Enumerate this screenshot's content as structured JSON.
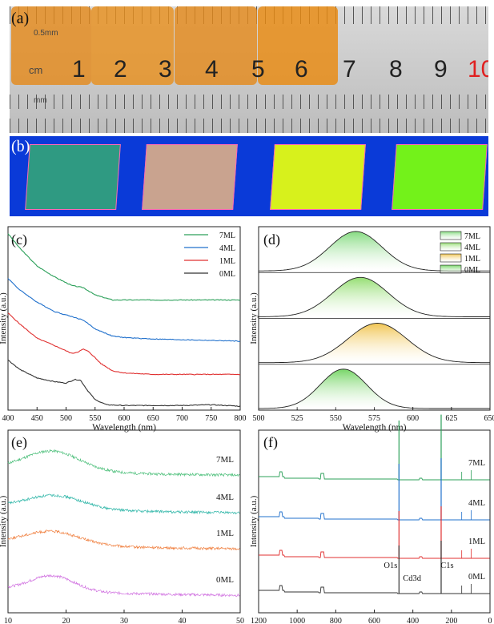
{
  "panel_labels": [
    "(a)",
    "(b)",
    "(c)",
    "(d)",
    "(e)",
    "(f)"
  ],
  "ruler": {
    "unit_label": "cm",
    "sub_unit_label": "0.5mm",
    "mm_label": "mm",
    "numbers": [
      "1",
      "2",
      "3",
      "4",
      "5",
      "6",
      "7",
      "8",
      "9",
      "10"
    ],
    "colors": {
      "film": "#e48a1c",
      "ruler": "#cccccc",
      "red_mark": "#e02020"
    }
  },
  "photo_b": {
    "background": "#0a3ad8",
    "tiles": [
      {
        "color": "#2f9a82"
      },
      {
        "color": "#c9a38f"
      },
      {
        "color": "#d7f11c"
      },
      {
        "color": "#73f21a"
      }
    ]
  },
  "chart_data": [
    {
      "panel": "(c)",
      "type": "line",
      "xlabel": "Wavelength (nm)",
      "ylabel": "Intensity (a.u.)",
      "xlim": [
        400,
        800
      ],
      "xticks": [
        "400",
        "450",
        "500",
        "550",
        "600",
        "650",
        "700",
        "750",
        "800"
      ],
      "yticks_visible": false,
      "legend": "top-right",
      "series": [
        {
          "name": "7ML",
          "color": "#2ca05a",
          "x": [
            400,
            420,
            450,
            480,
            510,
            530,
            550,
            580,
            600,
            650,
            700,
            750,
            800
          ],
          "y": [
            2.4,
            2.2,
            1.95,
            1.8,
            1.68,
            1.65,
            1.55,
            1.48,
            1.48,
            1.48,
            1.48,
            1.48,
            1.48
          ]
        },
        {
          "name": "4ML",
          "color": "#2070cc",
          "x": [
            400,
            420,
            450,
            480,
            510,
            530,
            550,
            580,
            600,
            650,
            700,
            750,
            800
          ],
          "y": [
            1.78,
            1.62,
            1.45,
            1.32,
            1.25,
            1.2,
            1.08,
            0.98,
            0.96,
            0.94,
            0.93,
            0.92,
            0.91
          ]
        },
        {
          "name": "1ML",
          "color": "#e03030",
          "x": [
            400,
            420,
            450,
            480,
            510,
            520,
            530,
            540,
            560,
            580,
            600,
            650,
            700,
            750,
            800
          ],
          "y": [
            1.3,
            1.15,
            0.95,
            0.85,
            0.74,
            0.76,
            0.8,
            0.76,
            0.6,
            0.5,
            0.47,
            0.45,
            0.45,
            0.45,
            0.45
          ]
        },
        {
          "name": "0ML",
          "color": "#333333",
          "x": [
            400,
            420,
            450,
            480,
            500,
            515,
            525,
            535,
            550,
            570,
            600,
            650,
            700,
            750,
            800
          ],
          "y": [
            0.65,
            0.52,
            0.4,
            0.35,
            0.33,
            0.38,
            0.37,
            0.25,
            0.1,
            0.03,
            0.02,
            0.02,
            0.02,
            0.03,
            0.01
          ]
        }
      ]
    },
    {
      "panel": "(d)",
      "type": "area",
      "xlabel": "Wavelength (nm)",
      "ylabel": "Intensity (a.u.)",
      "xlim": [
        500,
        650
      ],
      "xticks": [
        "500",
        "525",
        "550",
        "575",
        "600",
        "625",
        "650"
      ],
      "legend": "top-right",
      "series": [
        {
          "name": "7ML",
          "color": "#7fd97a",
          "peak": 563,
          "width": 17
        },
        {
          "name": "4ML",
          "color": "#8fdc6a",
          "peak": 566,
          "width": 18
        },
        {
          "name": "1ML",
          "color": "#f0c24a",
          "peak": 577,
          "width": 19
        },
        {
          "name": "0ML",
          "color": "#6fd35e",
          "peak": 555,
          "width": 15
        }
      ]
    },
    {
      "panel": "(e)",
      "type": "line",
      "xlabel": "2θ (degree)",
      "ylabel": "Intensity (a.u.)",
      "xlim": [
        10,
        52
      ],
      "xticks": [
        "10",
        "20",
        "30",
        "40",
        "50"
      ],
      "series": [
        {
          "name": "7ML",
          "color": "#4cbf7a",
          "peak": 18,
          "width": 5,
          "amplitude": 0.45
        },
        {
          "name": "4ML",
          "color": "#2fb6a8",
          "peak": 18.5,
          "width": 5,
          "amplitude": 0.3
        },
        {
          "name": "1ML",
          "color": "#f08040",
          "peak": 18,
          "width": 5,
          "amplitude": 0.3
        },
        {
          "name": "0ML",
          "color": "#d070e0",
          "peak": 18,
          "width": 4,
          "amplitude": 0.35
        }
      ]
    },
    {
      "panel": "(f)",
      "type": "line",
      "xlabel": "Binding Energy(eV)",
      "ylabel": "Intensity (a.u.)",
      "xlim": [
        1350,
        0
      ],
      "xticks": [
        "1200",
        "1000",
        "800",
        "600",
        "400",
        "200",
        "0"
      ],
      "annotations": [
        "O1s",
        "Cd3d",
        "C1s"
      ],
      "series": [
        {
          "name": "7ML",
          "color": "#2ca05a"
        },
        {
          "name": "4ML",
          "color": "#2070cc"
        },
        {
          "name": "1ML",
          "color": "#e03030"
        },
        {
          "name": "0ML",
          "color": "#333333"
        }
      ],
      "peaks": [
        {
          "label": "O1s",
          "position": 531
        },
        {
          "label": "Cd3d",
          "position": 405
        },
        {
          "label": "C1s",
          "position": 285
        }
      ]
    }
  ]
}
